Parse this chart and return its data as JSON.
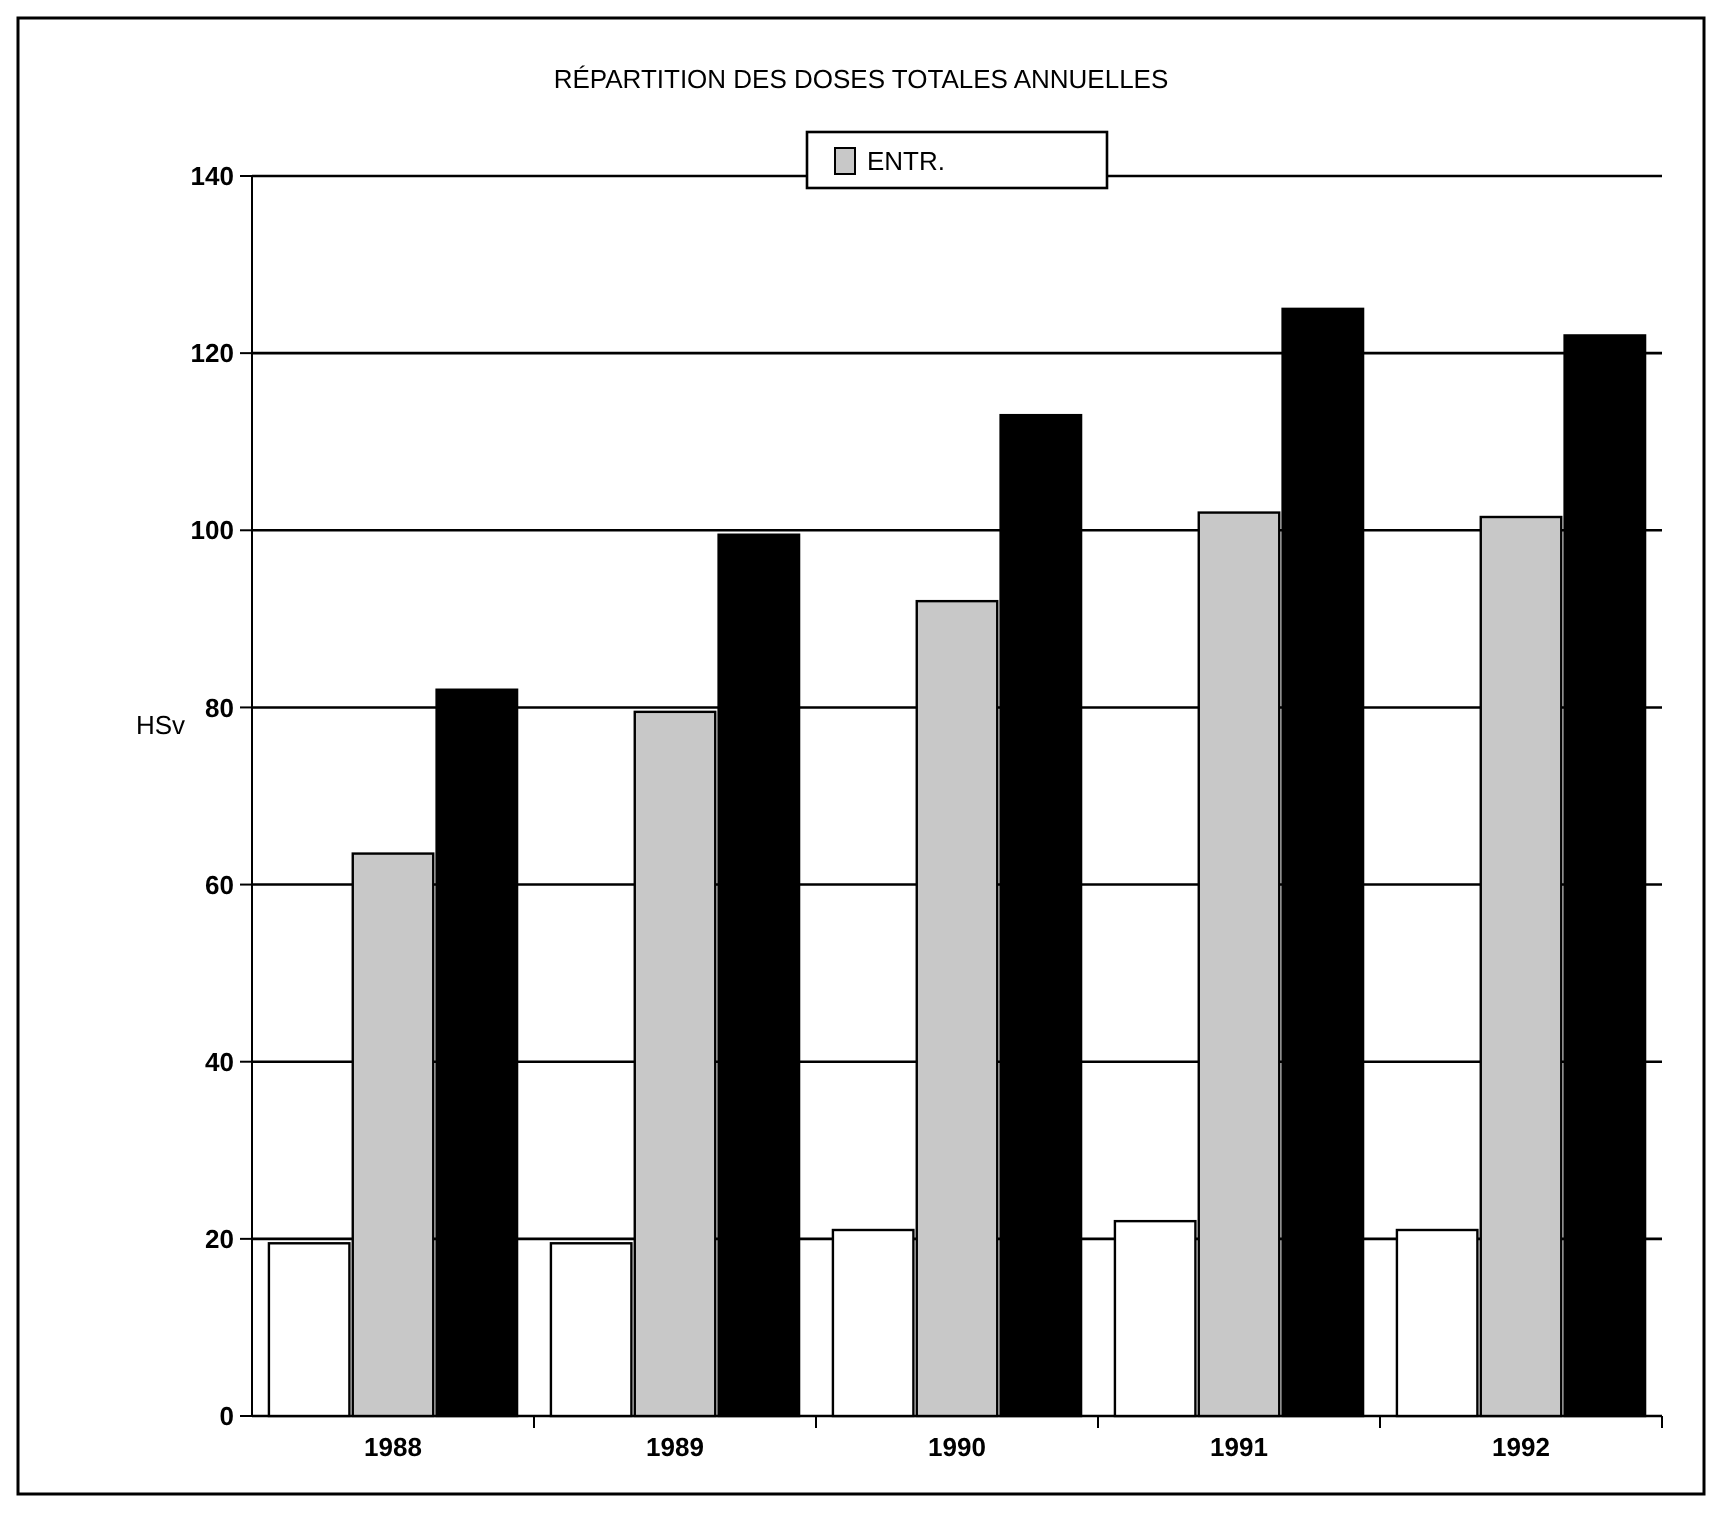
{
  "chart_data": {
    "type": "bar",
    "title": "RÉPARTITION DES DOSES TOTALES ANNUELLES",
    "ylabel": "HSv",
    "categories": [
      "1988",
      "1989",
      "1990",
      "1991",
      "1992"
    ],
    "series": [
      {
        "color": "#ffffff",
        "values": [
          19.5,
          19.5,
          21,
          22,
          21
        ]
      },
      {
        "name": "ENTR.",
        "color": "#c8c8c8",
        "values": [
          63.5,
          79.5,
          92,
          102,
          101.5
        ]
      },
      {
        "color": "#000000",
        "values": [
          82,
          99.5,
          113,
          125,
          122
        ]
      }
    ],
    "ylim": [
      0,
      140
    ],
    "yticks": [
      0,
      20,
      40,
      60,
      80,
      100,
      120,
      140
    ],
    "grid": "y",
    "legend": "top"
  }
}
